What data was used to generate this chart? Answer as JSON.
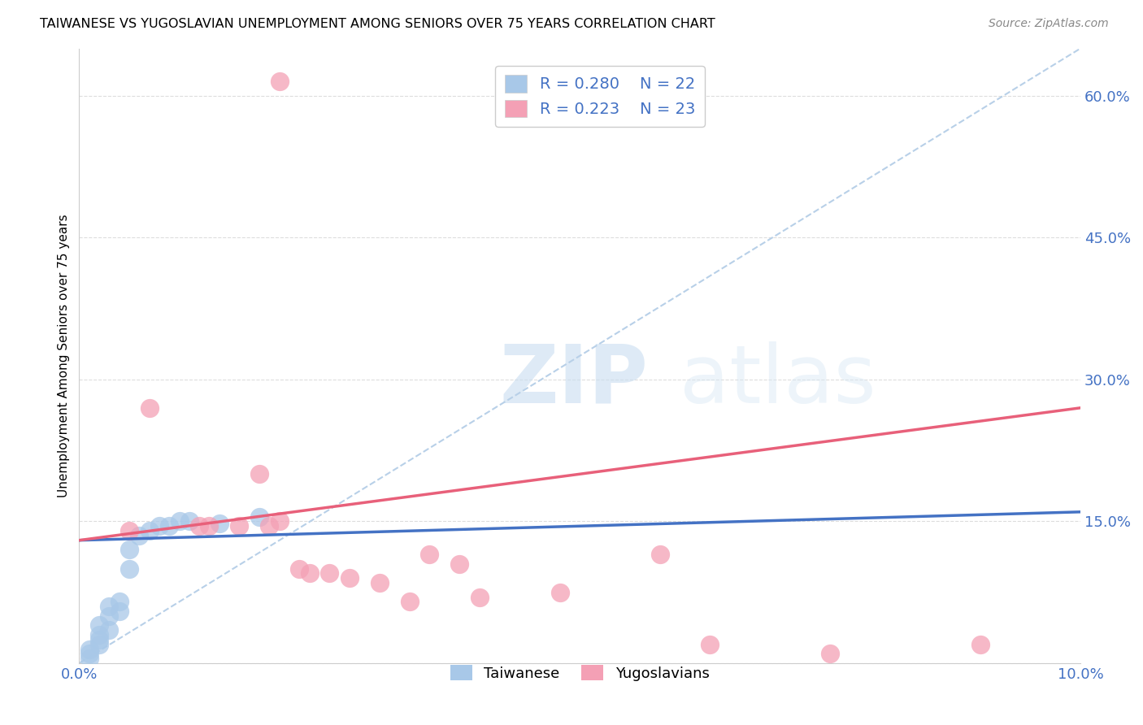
{
  "title": "TAIWANESE VS YUGOSLAVIAN UNEMPLOYMENT AMONG SENIORS OVER 75 YEARS CORRELATION CHART",
  "source": "Source: ZipAtlas.com",
  "ylabel": "Unemployment Among Seniors over 75 years",
  "xlim": [
    0.0,
    0.1
  ],
  "ylim": [
    0.0,
    0.65
  ],
  "yticks": [
    0.0,
    0.15,
    0.3,
    0.45,
    0.6
  ],
  "ytick_labels": [
    "",
    "15.0%",
    "30.0%",
    "45.0%",
    "60.0%"
  ],
  "xtick_labels": [
    "0.0%",
    "10.0%"
  ],
  "watermark_zip": "ZIP",
  "watermark_atlas": "atlas",
  "legend_r1": "R = 0.280",
  "legend_n1": "N = 22",
  "legend_r2": "R = 0.223",
  "legend_n2": "N = 23",
  "taiwanese_color": "#a8c8e8",
  "yugoslavian_color": "#f4a0b5",
  "taiwanese_line_color": "#4472c4",
  "yugoslavian_line_color": "#e8607a",
  "ref_line_color": "#b8d0e8",
  "tw_line_x": [
    0.0,
    0.1
  ],
  "tw_line_y": [
    0.13,
    0.16
  ],
  "yu_line_x": [
    0.0,
    0.1
  ],
  "yu_line_y": [
    0.13,
    0.27
  ],
  "ref_line_x": [
    0.0,
    0.1
  ],
  "ref_line_y": [
    0.0,
    0.65
  ],
  "taiwanese_x": [
    0.001,
    0.001,
    0.001,
    0.002,
    0.002,
    0.002,
    0.002,
    0.003,
    0.003,
    0.003,
    0.004,
    0.004,
    0.005,
    0.005,
    0.006,
    0.007,
    0.008,
    0.009,
    0.01,
    0.011,
    0.014,
    0.018
  ],
  "taiwanese_y": [
    0.005,
    0.01,
    0.015,
    0.02,
    0.025,
    0.03,
    0.04,
    0.035,
    0.05,
    0.06,
    0.055,
    0.065,
    0.1,
    0.12,
    0.135,
    0.14,
    0.145,
    0.145,
    0.15,
    0.15,
    0.148,
    0.155
  ],
  "yugoslavian_x": [
    0.005,
    0.007,
    0.012,
    0.013,
    0.016,
    0.018,
    0.019,
    0.02,
    0.022,
    0.023,
    0.025,
    0.027,
    0.03,
    0.033,
    0.035,
    0.038,
    0.04,
    0.048,
    0.058,
    0.063,
    0.075,
    0.09,
    0.02
  ],
  "yugoslavian_y": [
    0.14,
    0.27,
    0.145,
    0.145,
    0.145,
    0.2,
    0.145,
    0.15,
    0.1,
    0.095,
    0.095,
    0.09,
    0.085,
    0.065,
    0.115,
    0.105,
    0.07,
    0.075,
    0.115,
    0.02,
    0.01,
    0.02,
    0.615
  ]
}
